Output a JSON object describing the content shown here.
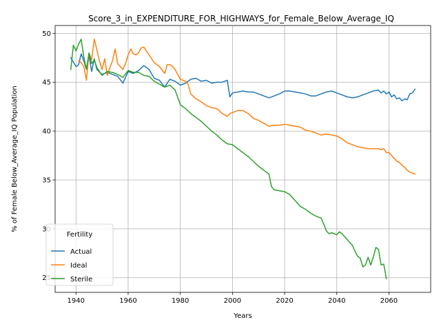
{
  "chart_data": {
    "type": "line",
    "title": "Score_3_in_EXPENDITURE_FOR_HIGHWAYS_for_Female_Below_Average_IQ",
    "xlabel": "Years",
    "ylabel": "% of Female Below_Average_IQ Population",
    "xlim": [
      1932,
      2076
    ],
    "ylim": [
      23.5,
      50.8
    ],
    "xticks": [
      1940,
      1960,
      1980,
      2000,
      2020,
      2040,
      2060
    ],
    "yticks": [
      25,
      30,
      35,
      40,
      45,
      50
    ],
    "grid": true,
    "legend": {
      "title": "Fertility",
      "position": "lower-left"
    },
    "series": [
      {
        "name": "Actual",
        "color": "#1f77b4",
        "x": [
          1938,
          1940,
          1941,
          1942,
          1943,
          1944,
          1945,
          1946,
          1947,
          1948,
          1950,
          1952,
          1954,
          1956,
          1958,
          1960,
          1962,
          1964,
          1966,
          1968,
          1970,
          1972,
          1974,
          1976,
          1978,
          1980,
          1982,
          1984,
          1986,
          1988,
          1990,
          1992,
          1994,
          1996,
          1998,
          1999,
          2000,
          2002,
          2004,
          2006,
          2008,
          2010,
          2012,
          2014,
          2016,
          2018,
          2020,
          2022,
          2024,
          2026,
          2028,
          2030,
          2032,
          2034,
          2036,
          2038,
          2040,
          2042,
          2044,
          2046,
          2048,
          2050,
          2052,
          2054,
          2056,
          2057,
          2058,
          2059,
          2060,
          2061,
          2062,
          2063,
          2064,
          2065,
          2066,
          2067,
          2068,
          2069,
          2070
        ],
        "y": [
          47.5,
          46.6,
          46.8,
          47.9,
          47.2,
          46.3,
          47.7,
          46.1,
          47.4,
          46.3,
          45.8,
          46.0,
          45.8,
          45.6,
          44.9,
          46.1,
          45.9,
          46.2,
          46.7,
          46.3,
          45.4,
          45.2,
          44.5,
          45.3,
          45.1,
          44.7,
          44.9,
          45.3,
          45.4,
          45.1,
          45.2,
          44.9,
          45.0,
          45.0,
          45.2,
          43.5,
          43.9,
          44.0,
          44.1,
          44.0,
          44.0,
          43.8,
          43.6,
          43.4,
          43.6,
          43.8,
          44.1,
          44.1,
          44.0,
          43.9,
          43.8,
          43.6,
          43.6,
          43.8,
          44.0,
          44.1,
          43.9,
          43.7,
          43.5,
          43.4,
          43.5,
          43.7,
          43.9,
          44.1,
          44.2,
          43.9,
          44.1,
          43.8,
          44.0,
          43.5,
          43.7,
          43.3,
          43.4,
          43.1,
          43.3,
          43.2,
          43.8,
          43.9,
          44.3
        ]
      },
      {
        "name": "Ideal",
        "color": "#ff7f0e",
        "x": [
          1941,
          1942,
          1943,
          1944,
          1945,
          1946,
          1947,
          1948,
          1949,
          1950,
          1951,
          1952,
          1953,
          1954,
          1955,
          1956,
          1958,
          1959,
          1960,
          1961,
          1962,
          1963,
          1964,
          1965,
          1966,
          1967,
          1968,
          1970,
          1972,
          1974,
          1975,
          1976,
          1977,
          1978,
          1980,
          1982,
          1983,
          1984,
          1986,
          1988,
          1990,
          1992,
          1994,
          1996,
          1998,
          1999,
          2000,
          2002,
          2004,
          2006,
          2008,
          2010,
          2012,
          2014,
          2016,
          2018,
          2020,
          2022,
          2024,
          2026,
          2028,
          2030,
          2032,
          2034,
          2036,
          2038,
          2040,
          2042,
          2044,
          2046,
          2048,
          2050,
          2052,
          2054,
          2056,
          2057,
          2058,
          2059,
          2060,
          2061,
          2062,
          2063,
          2064,
          2065,
          2066,
          2067,
          2068,
          2069,
          2070
        ],
        "y": [
          47.2,
          47.0,
          46.6,
          45.2,
          48.0,
          47.3,
          49.4,
          48.3,
          47.2,
          46.3,
          47.4,
          45.7,
          46.5,
          47.2,
          48.4,
          46.9,
          46.3,
          46.9,
          47.8,
          48.4,
          47.9,
          47.8,
          48.0,
          48.5,
          48.6,
          48.2,
          47.8,
          47.0,
          46.6,
          45.9,
          46.8,
          46.8,
          46.6,
          46.3,
          45.3,
          45.1,
          44.8,
          43.8,
          43.3,
          43.0,
          42.6,
          42.4,
          42.3,
          41.8,
          41.5,
          41.8,
          41.9,
          42.1,
          42.1,
          41.8,
          41.3,
          41.1,
          40.8,
          40.5,
          40.6,
          40.6,
          40.7,
          40.6,
          40.5,
          40.4,
          40.1,
          40.0,
          39.8,
          39.6,
          39.7,
          39.6,
          39.5,
          39.2,
          38.8,
          38.6,
          38.4,
          38.3,
          38.2,
          38.2,
          38.2,
          38.1,
          38.2,
          37.8,
          37.8,
          37.5,
          37.2,
          36.9,
          36.8,
          36.5,
          36.3,
          36.0,
          35.8,
          35.7,
          35.6
        ]
      },
      {
        "name": "Sterile",
        "color": "#2ca02c",
        "x": [
          1938,
          1939,
          1940,
          1941,
          1942,
          1943,
          1944,
          1945,
          1946,
          1947,
          1948,
          1950,
          1952,
          1954,
          1956,
          1958,
          1960,
          1962,
          1964,
          1966,
          1968,
          1970,
          1972,
          1974,
          1976,
          1978,
          1980,
          1982,
          1984,
          1986,
          1988,
          1990,
          1992,
          1994,
          1996,
          1998,
          2000,
          2002,
          2004,
          2006,
          2008,
          2010,
          2012,
          2014,
          2015,
          2016,
          2018,
          2020,
          2022,
          2024,
          2026,
          2028,
          2030,
          2032,
          2034,
          2035,
          2036,
          2037,
          2038,
          2040,
          2041,
          2042,
          2044,
          2045,
          2046,
          2047,
          2048,
          2049,
          2050,
          2051,
          2052,
          2053,
          2054,
          2055,
          2056,
          2057,
          2058,
          2059
        ],
        "y": [
          46.3,
          48.8,
          48.2,
          48.9,
          49.4,
          47.6,
          46.3,
          48.0,
          46.9,
          47.3,
          46.5,
          45.7,
          46.1,
          46.0,
          45.8,
          45.5,
          46.2,
          46.0,
          46.0,
          45.7,
          45.6,
          45.1,
          44.8,
          44.5,
          44.7,
          44.2,
          42.7,
          42.3,
          41.8,
          41.4,
          41.0,
          40.5,
          40.0,
          39.6,
          39.1,
          38.7,
          38.6,
          38.2,
          37.8,
          37.4,
          36.9,
          36.4,
          36.0,
          35.6,
          34.3,
          34.0,
          33.9,
          33.8,
          33.5,
          32.9,
          32.3,
          32.0,
          31.6,
          31.3,
          31.1,
          30.5,
          29.8,
          29.5,
          29.6,
          29.4,
          29.7,
          29.5,
          28.9,
          28.6,
          28.3,
          27.7,
          27.2,
          27.0,
          26.1,
          26.3,
          27.1,
          26.3,
          27.1,
          28.1,
          27.9,
          26.3,
          26.4,
          24.9
        ]
      }
    ]
  }
}
